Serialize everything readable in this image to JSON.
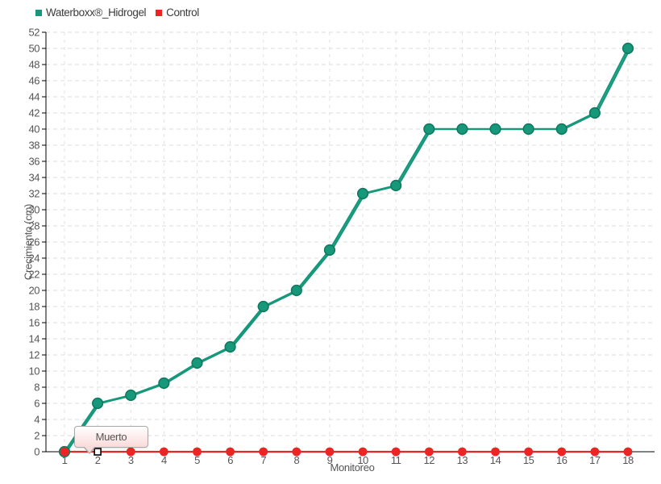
{
  "chart_data": {
    "type": "line",
    "x": [
      1,
      2,
      3,
      4,
      5,
      6,
      7,
      8,
      9,
      10,
      11,
      12,
      13,
      14,
      15,
      16,
      17,
      18
    ],
    "series": [
      {
        "name": "Waterboxx®_Hidrogel",
        "color": "#17987B",
        "marker_stroke": "#0E7A5F",
        "values": [
          0,
          6,
          7,
          8.5,
          11,
          13,
          18,
          20,
          25,
          32,
          33,
          40,
          40,
          40,
          40,
          40,
          42,
          50
        ]
      },
      {
        "name": "Control",
        "color": "#ED2424",
        "line_color": "#E32626",
        "values": [
          0,
          0,
          0,
          0,
          0,
          0,
          0,
          0,
          0,
          0,
          0,
          0,
          0,
          0,
          0,
          0,
          0,
          0
        ]
      }
    ],
    "xlabel": "Monitoreo",
    "ylabel": "Crecimiento (cm)",
    "ylim": [
      0,
      52
    ],
    "ytick_step": 2,
    "xticks": [
      1,
      2,
      3,
      4,
      5,
      6,
      7,
      8,
      9,
      10,
      11,
      12,
      13,
      14,
      15,
      16,
      17,
      18
    ],
    "grid": true,
    "legend_position": "top-left",
    "annotations": [
      {
        "label": "Muerto",
        "series": "Control",
        "x": 2,
        "y": 0
      }
    ]
  },
  "colors": {
    "axis": "#000000",
    "grid": "#dedede",
    "tick_label": "#555555",
    "legend_text": "#3b3b3b",
    "tooltip_border": "#a9a9a9",
    "tooltip_fill_bottom": "#fbdada"
  }
}
